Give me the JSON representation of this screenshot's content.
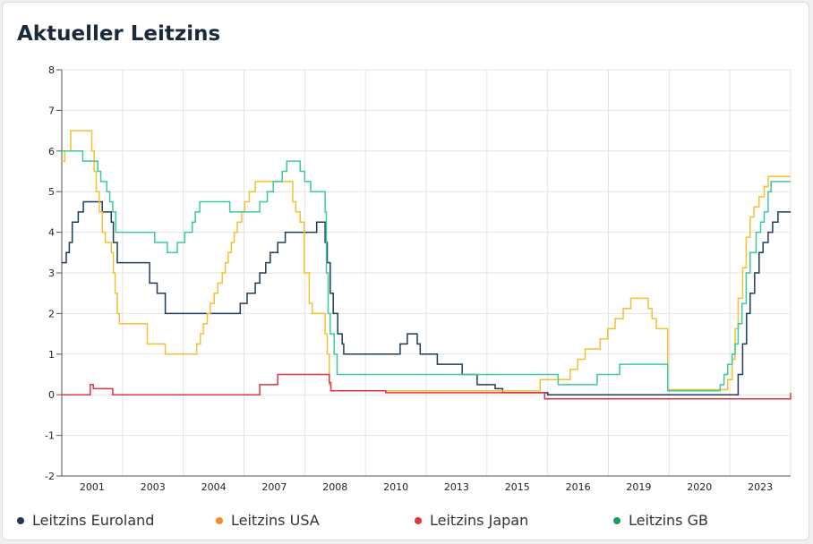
{
  "title": "Aktueller Leitzins",
  "chart_data": {
    "type": "line",
    "title": "Aktueller Leitzins",
    "xlabel": "",
    "ylabel": "",
    "xlim": [
      2000.0,
      2024.3
    ],
    "ylim": [
      -2,
      8
    ],
    "y_ticks": [
      -2,
      -1,
      0,
      1,
      2,
      3,
      4,
      5,
      6,
      7,
      8
    ],
    "x_tick_labels": [
      "2001",
      "2003",
      "2004",
      "2007",
      "2008",
      "2010",
      "2013",
      "2015",
      "2016",
      "2019",
      "2020",
      "2023"
    ],
    "grid": true,
    "legend_position": "bottom",
    "series": [
      {
        "name": "Leitzins Euroland",
        "color": "#1f3b5c",
        "points": [
          [
            2000.0,
            3.25
          ],
          [
            2000.15,
            3.5
          ],
          [
            2000.25,
            3.75
          ],
          [
            2000.35,
            4.25
          ],
          [
            2000.55,
            4.5
          ],
          [
            2000.72,
            4.75
          ],
          [
            2001.35,
            4.5
          ],
          [
            2001.65,
            4.25
          ],
          [
            2001.72,
            3.75
          ],
          [
            2001.85,
            3.25
          ],
          [
            2002.93,
            2.75
          ],
          [
            2003.18,
            2.5
          ],
          [
            2003.45,
            2.0
          ],
          [
            2005.95,
            2.25
          ],
          [
            2006.18,
            2.5
          ],
          [
            2006.45,
            2.75
          ],
          [
            2006.6,
            3.0
          ],
          [
            2006.8,
            3.25
          ],
          [
            2006.95,
            3.5
          ],
          [
            2007.2,
            3.75
          ],
          [
            2007.45,
            4.0
          ],
          [
            2008.5,
            4.25
          ],
          [
            2008.78,
            3.75
          ],
          [
            2008.85,
            3.25
          ],
          [
            2008.95,
            2.5
          ],
          [
            2009.05,
            2.0
          ],
          [
            2009.2,
            1.5
          ],
          [
            2009.35,
            1.25
          ],
          [
            2009.4,
            1.0
          ],
          [
            2011.28,
            1.25
          ],
          [
            2011.52,
            1.5
          ],
          [
            2011.85,
            1.25
          ],
          [
            2011.95,
            1.0
          ],
          [
            2012.52,
            0.75
          ],
          [
            2013.35,
            0.5
          ],
          [
            2013.85,
            0.25
          ],
          [
            2014.45,
            0.15
          ],
          [
            2014.7,
            0.05
          ],
          [
            2016.2,
            0.0
          ],
          [
            2022.55,
            0.5
          ],
          [
            2022.7,
            1.25
          ],
          [
            2022.83,
            2.0
          ],
          [
            2022.95,
            2.5
          ],
          [
            2023.1,
            3.0
          ],
          [
            2023.25,
            3.5
          ],
          [
            2023.38,
            3.75
          ],
          [
            2023.55,
            4.0
          ],
          [
            2023.7,
            4.25
          ],
          [
            2023.88,
            4.5
          ],
          [
            2024.3,
            4.5
          ]
        ]
      },
      {
        "name": "Leitzins USA",
        "color": "#f2c232",
        "points": [
          [
            2000.0,
            5.75
          ],
          [
            2000.1,
            6.0
          ],
          [
            2000.3,
            6.5
          ],
          [
            2001.0,
            6.0
          ],
          [
            2001.08,
            5.5
          ],
          [
            2001.15,
            5.0
          ],
          [
            2001.25,
            4.5
          ],
          [
            2001.35,
            4.0
          ],
          [
            2001.45,
            3.75
          ],
          [
            2001.65,
            3.5
          ],
          [
            2001.72,
            3.0
          ],
          [
            2001.78,
            2.5
          ],
          [
            2001.85,
            2.0
          ],
          [
            2001.92,
            1.75
          ],
          [
            2002.85,
            1.25
          ],
          [
            2003.45,
            1.0
          ],
          [
            2004.5,
            1.25
          ],
          [
            2004.62,
            1.5
          ],
          [
            2004.72,
            1.75
          ],
          [
            2004.85,
            2.0
          ],
          [
            2004.95,
            2.25
          ],
          [
            2005.08,
            2.5
          ],
          [
            2005.2,
            2.75
          ],
          [
            2005.35,
            3.0
          ],
          [
            2005.45,
            3.25
          ],
          [
            2005.55,
            3.5
          ],
          [
            2005.65,
            3.75
          ],
          [
            2005.75,
            4.0
          ],
          [
            2005.85,
            4.25
          ],
          [
            2006.0,
            4.5
          ],
          [
            2006.1,
            4.75
          ],
          [
            2006.25,
            5.0
          ],
          [
            2006.45,
            5.25
          ],
          [
            2007.7,
            4.75
          ],
          [
            2007.8,
            4.5
          ],
          [
            2007.95,
            4.25
          ],
          [
            2008.08,
            3.0
          ],
          [
            2008.25,
            2.25
          ],
          [
            2008.35,
            2.0
          ],
          [
            2008.78,
            1.5
          ],
          [
            2008.85,
            1.0
          ],
          [
            2008.92,
            0.25
          ],
          [
            2008.97,
            0.1
          ],
          [
            2015.95,
            0.375
          ],
          [
            2016.95,
            0.625
          ],
          [
            2017.2,
            0.875
          ],
          [
            2017.45,
            1.125
          ],
          [
            2017.95,
            1.375
          ],
          [
            2018.2,
            1.625
          ],
          [
            2018.45,
            1.875
          ],
          [
            2018.72,
            2.125
          ],
          [
            2018.97,
            2.375
          ],
          [
            2019.55,
            2.125
          ],
          [
            2019.68,
            1.875
          ],
          [
            2019.82,
            1.625
          ],
          [
            2020.2,
            0.125
          ],
          [
            2022.2,
            0.375
          ],
          [
            2022.35,
            0.875
          ],
          [
            2022.45,
            1.625
          ],
          [
            2022.55,
            2.375
          ],
          [
            2022.7,
            3.125
          ],
          [
            2022.82,
            3.875
          ],
          [
            2022.95,
            4.375
          ],
          [
            2023.08,
            4.625
          ],
          [
            2023.25,
            4.875
          ],
          [
            2023.42,
            5.125
          ],
          [
            2023.55,
            5.375
          ],
          [
            2024.3,
            5.375
          ]
        ]
      },
      {
        "name": "Leitzins Japan",
        "color": "#dc3545",
        "points": [
          [
            2000.0,
            0.0
          ],
          [
            2000.6,
            0.0
          ],
          [
            2000.95,
            0.25
          ],
          [
            2001.05,
            0.15
          ],
          [
            2001.65,
            0.15
          ],
          [
            2001.7,
            0.0
          ],
          [
            2006.55,
            0.0
          ],
          [
            2006.6,
            0.25
          ],
          [
            2007.15,
            0.25
          ],
          [
            2007.2,
            0.5
          ],
          [
            2008.85,
            0.5
          ],
          [
            2008.92,
            0.3
          ],
          [
            2008.97,
            0.1
          ],
          [
            2010.8,
            0.05
          ],
          [
            2016.1,
            -0.1
          ],
          [
            2024.2,
            -0.1
          ],
          [
            2024.3,
            0.05
          ]
        ]
      },
      {
        "name": "Leitzins GB",
        "color": "#3cc9a0",
        "points": [
          [
            2000.0,
            6.0
          ],
          [
            2000.7,
            5.75
          ],
          [
            2001.15,
            5.75
          ],
          [
            2001.2,
            5.5
          ],
          [
            2001.3,
            5.25
          ],
          [
            2001.5,
            5.0
          ],
          [
            2001.6,
            4.75
          ],
          [
            2001.7,
            4.5
          ],
          [
            2001.8,
            4.0
          ],
          [
            2003.1,
            3.75
          ],
          [
            2003.52,
            3.5
          ],
          [
            2003.85,
            3.75
          ],
          [
            2004.1,
            4.0
          ],
          [
            2004.35,
            4.25
          ],
          [
            2004.45,
            4.5
          ],
          [
            2004.6,
            4.75
          ],
          [
            2005.6,
            4.5
          ],
          [
            2006.6,
            4.75
          ],
          [
            2006.85,
            5.0
          ],
          [
            2007.05,
            5.25
          ],
          [
            2007.35,
            5.5
          ],
          [
            2007.5,
            5.75
          ],
          [
            2007.95,
            5.5
          ],
          [
            2008.1,
            5.25
          ],
          [
            2008.3,
            5.0
          ],
          [
            2008.78,
            4.5
          ],
          [
            2008.82,
            3.0
          ],
          [
            2008.88,
            2.0
          ],
          [
            2008.95,
            1.5
          ],
          [
            2009.08,
            1.0
          ],
          [
            2009.18,
            0.5
          ],
          [
            2016.55,
            0.25
          ],
          [
            2017.85,
            0.5
          ],
          [
            2018.6,
            0.75
          ],
          [
            2020.2,
            0.1
          ],
          [
            2021.95,
            0.25
          ],
          [
            2022.08,
            0.5
          ],
          [
            2022.2,
            0.75
          ],
          [
            2022.35,
            1.0
          ],
          [
            2022.45,
            1.25
          ],
          [
            2022.55,
            1.75
          ],
          [
            2022.68,
            2.25
          ],
          [
            2022.82,
            3.0
          ],
          [
            2022.95,
            3.5
          ],
          [
            2023.15,
            4.0
          ],
          [
            2023.3,
            4.25
          ],
          [
            2023.42,
            4.5
          ],
          [
            2023.55,
            5.0
          ],
          [
            2023.65,
            5.25
          ],
          [
            2024.3,
            5.25
          ]
        ]
      }
    ]
  }
}
